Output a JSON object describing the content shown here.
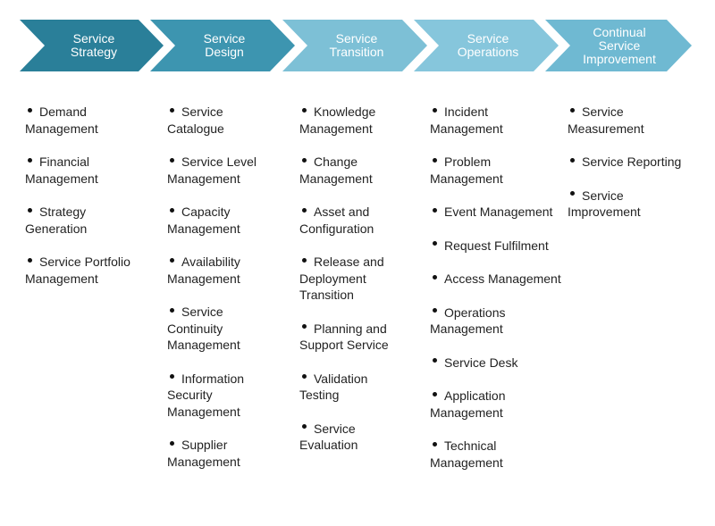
{
  "colors": {
    "stage_fills": [
      "#2a7f99",
      "#3d95b0",
      "#7dc0d6",
      "#86c6dc",
      "#6fb9d2"
    ],
    "text_white": "#ffffff",
    "body_text": "#222222"
  },
  "stages": [
    {
      "label": "Service\nStrategy",
      "items": [
        "Demand Management",
        "Financial Management",
        "Strategy Generation",
        "Service Portfolio Management"
      ]
    },
    {
      "label": "Service\nDesign",
      "items": [
        "Service Catalogue",
        "Service Level Management",
        "Capacity Management",
        "Availability Management",
        "Service Continuity Management",
        "Information Security Management",
        "Supplier Management"
      ]
    },
    {
      "label": "Service\nTransition",
      "items": [
        "Knowledge Management",
        "Change Management",
        "Asset and Configuration",
        "Release and Deployment Transition",
        "Planning and Support Service",
        "Validation Testing",
        "Service Evaluation"
      ]
    },
    {
      "label": "Service\nOperations",
      "items": [
        "Incident Management",
        "Problem Management",
        "Event Management",
        "Request Fulfilment",
        "Access Management",
        "Operations Management",
        "Service Desk",
        "Application Management",
        "Technical Management"
      ]
    },
    {
      "label": "Continual\nService\nImprovement",
      "items": [
        "Service Measurement",
        "Service Reporting",
        "Service Improvement"
      ]
    }
  ]
}
